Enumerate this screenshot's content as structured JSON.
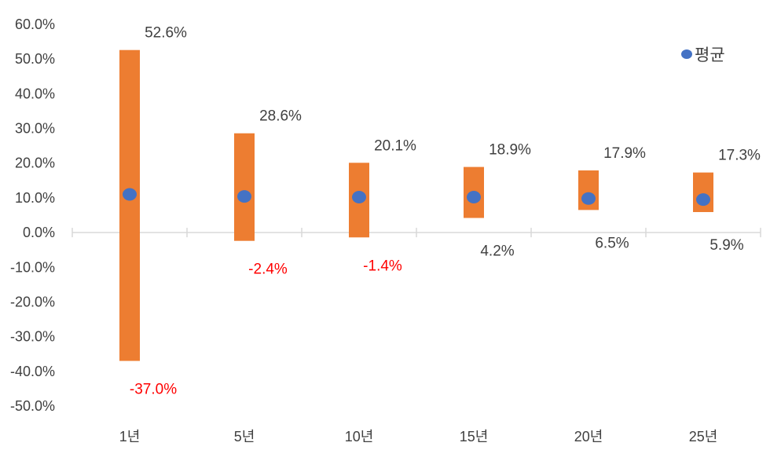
{
  "chart_data": {
    "type": "bar",
    "subtype": "floating-range-with-average-marker",
    "categories": [
      "1년",
      "5년",
      "10년",
      "15년",
      "20년",
      "25년"
    ],
    "series": [
      {
        "name": "",
        "role": "max",
        "values": [
          52.6,
          28.6,
          20.1,
          18.9,
          17.9,
          17.3
        ]
      },
      {
        "name": "",
        "role": "min",
        "values": [
          -37.0,
          -2.4,
          -1.4,
          4.2,
          6.5,
          5.9
        ]
      },
      {
        "name": "평균",
        "role": "average",
        "values": [
          11.0,
          10.4,
          10.2,
          10.2,
          9.8,
          9.5
        ]
      }
    ],
    "max_labels": [
      "52.6%",
      "28.6%",
      "20.1%",
      "18.9%",
      "17.9%",
      "17.3%"
    ],
    "min_labels": [
      "-37.0%",
      "-2.4%",
      "-1.4%",
      "4.2%",
      "6.5%",
      "5.9%"
    ],
    "y_tick_labels": [
      "60.0%",
      "50.0%",
      "40.0%",
      "30.0%",
      "20.0%",
      "10.0%",
      "0.0%",
      "-10.0%",
      "-20.0%",
      "-30.0%",
      "-40.0%",
      "-50.0%"
    ],
    "y_ticks": [
      60,
      50,
      40,
      30,
      20,
      10,
      0,
      -10,
      -20,
      -30,
      -40,
      -50
    ],
    "ylim": [
      -50,
      60
    ],
    "xlabel": "",
    "ylabel": "",
    "title": "",
    "grid": false,
    "legend": {
      "position": "top-right",
      "entries": [
        "평균"
      ]
    },
    "colors": {
      "range_bar": "#ed7d31",
      "average_marker": "#4472c4",
      "axis": "#d9d9d9",
      "text": "#404040",
      "negative_label": "#ff0000"
    }
  }
}
